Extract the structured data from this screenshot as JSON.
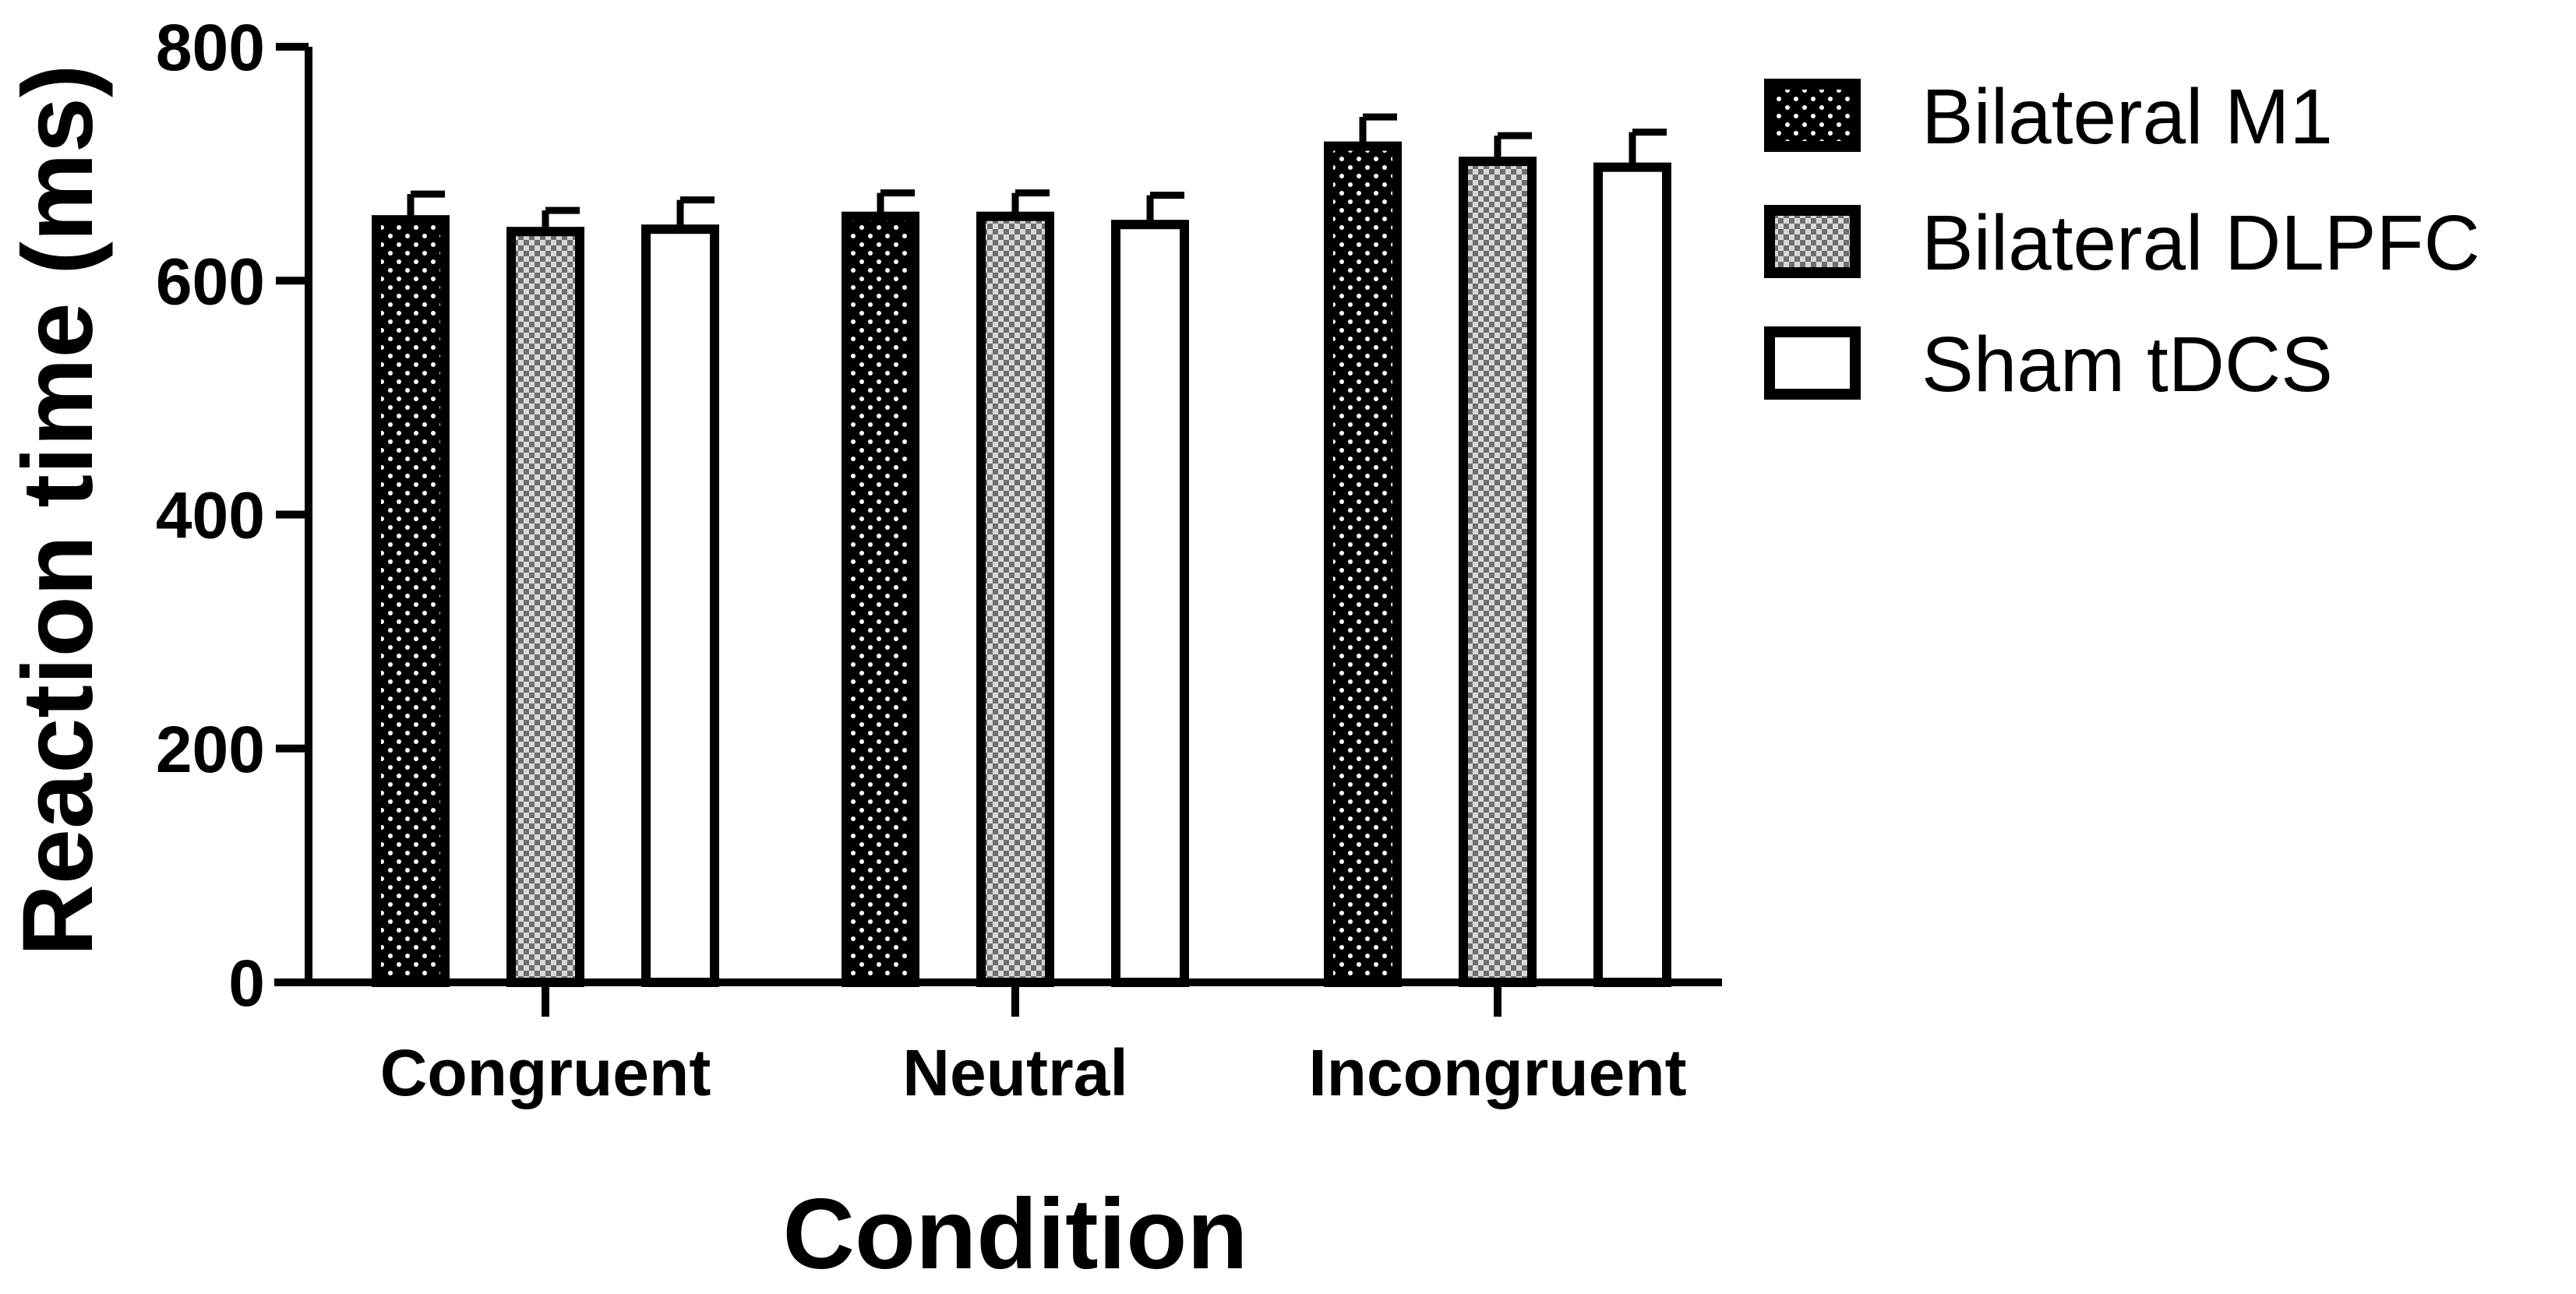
{
  "chart_data": {
    "type": "bar",
    "xlabel": "Condition",
    "ylabel": "Reaction time (ms)",
    "ylim": [
      0,
      800
    ],
    "yticks": [
      0,
      200,
      400,
      600,
      800
    ],
    "categories": [
      "Congruent",
      "Neutral",
      "Incongruent"
    ],
    "legend_position": "top-right",
    "grid": false,
    "series": [
      {
        "name": "Bilateral M1",
        "pattern": "dots",
        "fill": "#000000",
        "values": [
          652,
          655,
          715
        ],
        "error": [
          22,
          20,
          25
        ]
      },
      {
        "name": "Bilateral DLPFC",
        "pattern": "checker",
        "fill": "#9a9a9a",
        "values": [
          642,
          655,
          702
        ],
        "error": [
          18,
          20,
          22
        ]
      },
      {
        "name": "Sham tDCS",
        "pattern": "none",
        "fill": "#ffffff",
        "values": [
          644,
          648,
          697
        ],
        "error": [
          25,
          25,
          30
        ]
      }
    ]
  }
}
